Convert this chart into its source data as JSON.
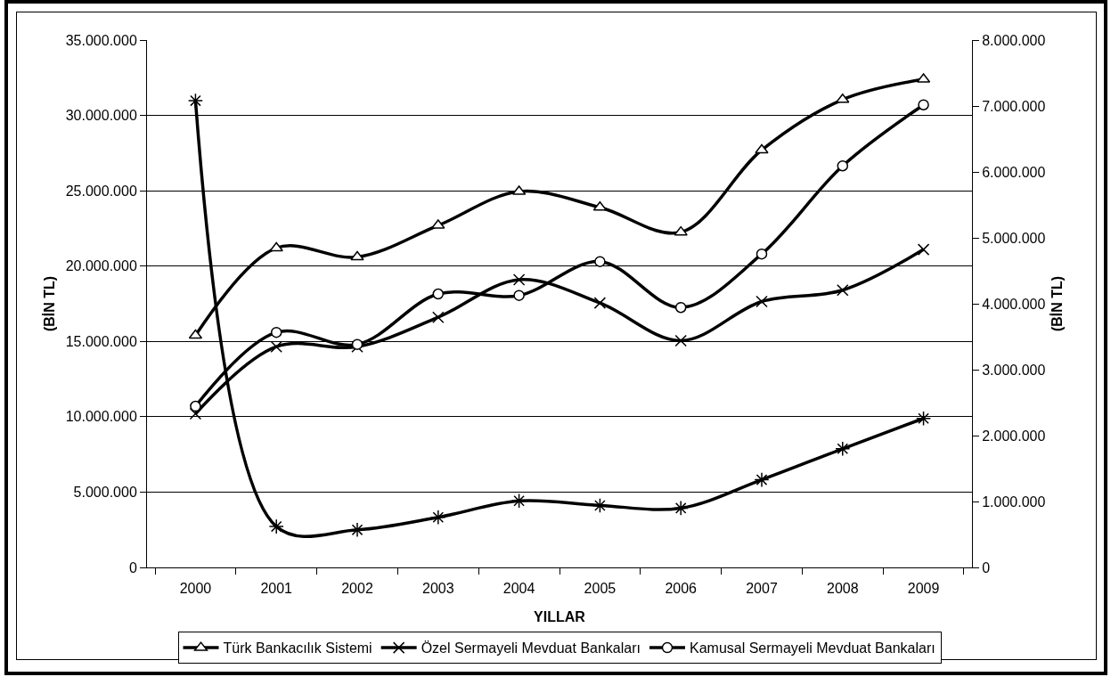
{
  "chart_data": {
    "type": "line",
    "categories": [
      "2000",
      "2001",
      "2002",
      "2003",
      "2004",
      "2005",
      "2006",
      "2007",
      "2008",
      "2009"
    ],
    "xlabel": "YILLAR",
    "ylabel": "(BİN TL)",
    "y2label": "(BİN TL)",
    "series": [
      {
        "name": "Türk Bankacılık Sistemi",
        "color": "#000000",
        "marker": "triangle",
        "values": [
          15400000,
          21200000,
          20600000,
          22700000,
          24950000,
          23900000,
          22250000,
          27700000,
          31050000,
          32400000
        ]
      },
      {
        "name": "Özel Sermayeli Mevduat Bankaları",
        "color": "#000000",
        "marker": "cross",
        "values": [
          10200000,
          14650000,
          14650000,
          16600000,
          19100000,
          17550000,
          15050000,
          17650000,
          18400000,
          21100000
        ]
      },
      {
        "name": "Kamusal Sermayeli Mevduat Bankaları",
        "color": "#000000",
        "marker": "circle",
        "values": [
          10700000,
          15600000,
          14800000,
          18150000,
          18050000,
          20300000,
          17250000,
          20800000,
          26650000,
          30700000
        ]
      },
      {
        "color": "#000000",
        "marker": "cross",
        "axis": "y2",
        "values": [
          7080000,
          620000,
          570000,
          760000,
          1010000,
          940000,
          900000,
          1330000,
          1800000,
          2260000
        ]
      }
    ],
    "ylim": [
      0,
      35000000
    ],
    "yticks": [
      0,
      {
        "value": 5000000,
        "label": "5.000.000"
      },
      {
        "value": 10000000,
        "label": "10.000.000"
      },
      {
        "value": 15000000,
        "label": "15.000.000"
      },
      {
        "value": 20000000,
        "label": "20.000.000"
      },
      {
        "value": 25000000,
        "label": "25.000.000"
      },
      {
        "value": 30000000,
        "label": "30.000.000"
      },
      {
        "value": 35000000,
        "label": "35.000.000"
      }
    ],
    "y2lim": [
      0,
      8000000
    ],
    "y2ticks": [
      0,
      {
        "value": 1000000,
        "label": "1.000.000"
      },
      {
        "value": 2000000,
        "label": "2.000.000"
      },
      {
        "value": 3000000,
        "label": "3.000.000"
      },
      {
        "value": 4000000,
        "label": "4.000.000"
      },
      {
        "value": 5000000,
        "label": "5.000.000"
      },
      {
        "value": 6000000,
        "label": "6.000.000"
      },
      {
        "value": 7000000,
        "label": "7.000.000"
      },
      {
        "value": 8000000,
        "label": "8.000.000"
      }
    ],
    "grid": "y",
    "legend": "bottom",
    "line_style": "solid"
  }
}
